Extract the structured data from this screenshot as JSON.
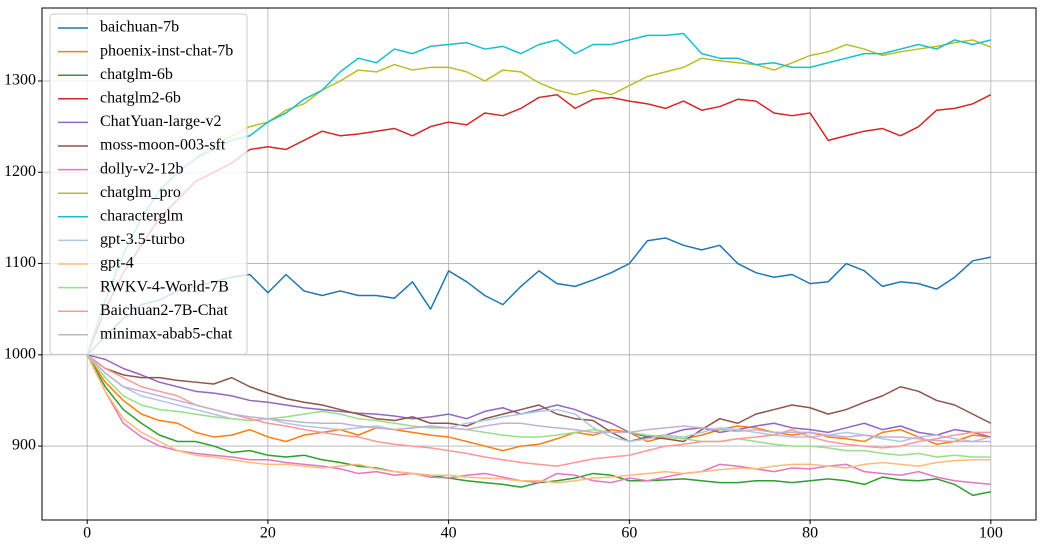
{
  "chart_data": {
    "type": "line",
    "x": [
      0,
      2,
      4,
      6,
      8,
      10,
      12,
      14,
      16,
      18,
      20,
      22,
      24,
      26,
      28,
      30,
      32,
      34,
      36,
      38,
      40,
      42,
      44,
      46,
      48,
      50,
      52,
      54,
      56,
      58,
      60,
      62,
      64,
      66,
      68,
      70,
      72,
      74,
      76,
      78,
      80,
      82,
      84,
      86,
      88,
      90,
      92,
      94,
      96,
      98,
      100
    ],
    "xlim": [
      -5,
      105
    ],
    "xticks": [
      0,
      20,
      40,
      60,
      80,
      100
    ],
    "ylim": [
      819,
      1380
    ],
    "yticks": [
      900,
      1000,
      1100,
      1200,
      1300
    ],
    "grid": true,
    "legend": "upper left",
    "series": [
      {
        "name": "baichuan-7b",
        "color": "#1f77b4",
        "values": [
          1000,
          1020,
          1040,
          1055,
          1060,
          1070,
          1075,
          1080,
          1085,
          1088,
          1068,
          1088,
          1070,
          1065,
          1070,
          1065,
          1065,
          1062,
          1080,
          1050,
          1092,
          1080,
          1065,
          1055,
          1075,
          1092,
          1078,
          1075,
          1082,
          1090,
          1100,
          1125,
          1128,
          1120,
          1115,
          1120,
          1100,
          1090,
          1085,
          1088,
          1078,
          1080,
          1100,
          1092,
          1075,
          1080,
          1078,
          1072,
          1085,
          1103,
          1107
        ]
      },
      {
        "name": "phoenix-inst-chat-7b",
        "color": "#ff7f0e",
        "values": [
          1000,
          970,
          950,
          935,
          928,
          925,
          915,
          910,
          912,
          918,
          910,
          905,
          912,
          915,
          918,
          912,
          920,
          918,
          915,
          912,
          910,
          905,
          900,
          895,
          900,
          902,
          908,
          915,
          912,
          918,
          915,
          905,
          910,
          908,
          912,
          918,
          922,
          920,
          915,
          912,
          915,
          910,
          908,
          905,
          915,
          918,
          910,
          902,
          905,
          912,
          910
        ]
      },
      {
        "name": "chatglm-6b",
        "color": "#2ca02c",
        "values": [
          1000,
          965,
          940,
          925,
          912,
          905,
          905,
          900,
          893,
          895,
          890,
          888,
          890,
          885,
          882,
          878,
          876,
          872,
          870,
          868,
          865,
          862,
          860,
          858,
          855,
          860,
          862,
          865,
          870,
          868,
          862,
          862,
          863,
          864,
          862,
          860,
          860,
          862,
          862,
          860,
          862,
          864,
          862,
          858,
          866,
          863,
          862,
          864,
          858,
          846,
          850
        ]
      },
      {
        "name": "chatglm2-6b",
        "color": "#d62728",
        "values": [
          1000,
          1050,
          1090,
          1120,
          1150,
          1170,
          1190,
          1200,
          1210,
          1225,
          1228,
          1225,
          1235,
          1245,
          1240,
          1242,
          1245,
          1248,
          1240,
          1250,
          1255,
          1252,
          1265,
          1262,
          1270,
          1282,
          1285,
          1270,
          1280,
          1282,
          1278,
          1275,
          1270,
          1278,
          1268,
          1272,
          1280,
          1278,
          1265,
          1262,
          1265,
          1235,
          1240,
          1245,
          1248,
          1240,
          1250,
          1268,
          1270,
          1275,
          1285
        ]
      },
      {
        "name": "ChatYuan-large-v2",
        "color": "#9467bd",
        "values": [
          1000,
          995,
          985,
          978,
          970,
          965,
          960,
          958,
          955,
          950,
          948,
          945,
          942,
          940,
          938,
          936,
          935,
          933,
          930,
          932,
          935,
          930,
          938,
          942,
          935,
          940,
          945,
          940,
          932,
          925,
          915,
          910,
          912,
          918,
          920,
          915,
          918,
          922,
          925,
          920,
          918,
          915,
          920,
          925,
          918,
          922,
          915,
          912,
          918,
          915,
          910
        ]
      },
      {
        "name": "moss-moon-003-sft",
        "color": "#8c564b",
        "values": [
          1000,
          985,
          978,
          975,
          975,
          972,
          970,
          968,
          975,
          965,
          958,
          952,
          948,
          945,
          940,
          935,
          930,
          928,
          932,
          925,
          925,
          922,
          930,
          935,
          940,
          945,
          935,
          930,
          928,
          915,
          905,
          910,
          908,
          905,
          918,
          930,
          925,
          935,
          940,
          945,
          942,
          935,
          940,
          948,
          955,
          965,
          960,
          950,
          945,
          935,
          925
        ]
      },
      {
        "name": "dolly-v2-12b",
        "color": "#e377c2",
        "values": [
          1000,
          960,
          925,
          910,
          900,
          895,
          892,
          890,
          888,
          885,
          885,
          882,
          880,
          878,
          875,
          870,
          872,
          868,
          870,
          866,
          865,
          868,
          870,
          866,
          862,
          860,
          870,
          868,
          862,
          860,
          865,
          862,
          866,
          870,
          872,
          880,
          878,
          875,
          872,
          876,
          875,
          878,
          880,
          872,
          870,
          868,
          872,
          866,
          862,
          860,
          858
        ]
      },
      {
        "name": "chatglm_pro",
        "color": "#bcbd22",
        "values": [
          1000,
          1060,
          1110,
          1150,
          1180,
          1200,
          1215,
          1230,
          1240,
          1250,
          1255,
          1268,
          1275,
          1290,
          1300,
          1312,
          1310,
          1318,
          1312,
          1315,
          1315,
          1310,
          1300,
          1312,
          1310,
          1298,
          1290,
          1285,
          1290,
          1285,
          1295,
          1305,
          1310,
          1315,
          1325,
          1322,
          1320,
          1318,
          1312,
          1320,
          1328,
          1332,
          1340,
          1335,
          1328,
          1332,
          1335,
          1338,
          1342,
          1345,
          1337
        ]
      },
      {
        "name": "characterglm",
        "color": "#17becf",
        "values": [
          1000,
          1060,
          1110,
          1150,
          1180,
          1200,
          1215,
          1225,
          1235,
          1240,
          1255,
          1265,
          1280,
          1290,
          1310,
          1325,
          1320,
          1335,
          1330,
          1338,
          1340,
          1342,
          1335,
          1338,
          1330,
          1340,
          1345,
          1330,
          1340,
          1340,
          1345,
          1350,
          1350,
          1352,
          1330,
          1325,
          1325,
          1318,
          1320,
          1315,
          1315,
          1320,
          1325,
          1330,
          1330,
          1335,
          1340,
          1335,
          1345,
          1340,
          1345
        ]
      },
      {
        "name": "gpt-3.5-turbo",
        "color": "#aec7e8",
        "values": [
          1000,
          980,
          965,
          955,
          950,
          945,
          940,
          935,
          930,
          928,
          930,
          925,
          922,
          920,
          918,
          920,
          922,
          918,
          920,
          922,
          920,
          925,
          928,
          932,
          935,
          938,
          940,
          935,
          920,
          910,
          905,
          908,
          912,
          910,
          915,
          920,
          918,
          915,
          912,
          910,
          910,
          912,
          915,
          912,
          908,
          905,
          910,
          912,
          908,
          905,
          910
        ]
      },
      {
        "name": "gpt-4",
        "color": "#ffbb78",
        "values": [
          1000,
          960,
          930,
          915,
          905,
          895,
          890,
          888,
          885,
          882,
          880,
          880,
          878,
          876,
          878,
          880,
          875,
          872,
          870,
          868,
          868,
          866,
          865,
          864,
          862,
          862,
          860,
          862,
          865,
          866,
          868,
          870,
          872,
          870,
          872,
          874,
          876,
          875,
          878,
          880,
          880,
          878,
          876,
          880,
          882,
          880,
          878,
          882,
          884,
          885,
          885
        ]
      },
      {
        "name": "RWKV-4-World-7B",
        "color": "#98df8a",
        "values": [
          1000,
          975,
          955,
          945,
          940,
          938,
          935,
          932,
          930,
          928,
          930,
          932,
          935,
          938,
          935,
          930,
          928,
          925,
          922,
          920,
          920,
          918,
          915,
          912,
          910,
          910,
          912,
          915,
          918,
          915,
          915,
          912,
          910,
          908,
          905,
          905,
          908,
          905,
          902,
          900,
          900,
          898,
          895,
          895,
          892,
          890,
          892,
          888,
          890,
          888,
          888
        ]
      },
      {
        "name": "Baichuan2-7B-Chat",
        "color": "#ff9896",
        "values": [
          1000,
          985,
          975,
          965,
          960,
          955,
          945,
          940,
          935,
          930,
          925,
          922,
          918,
          915,
          912,
          910,
          905,
          902,
          900,
          898,
          895,
          892,
          888,
          885,
          882,
          880,
          878,
          882,
          886,
          888,
          890,
          895,
          900,
          902,
          905,
          905,
          908,
          910,
          912,
          918,
          910,
          905,
          902,
          900,
          898,
          900,
          905,
          908,
          912,
          915,
          915
        ]
      },
      {
        "name": "minimax-abab5-chat",
        "color": "#c5b0d5",
        "values": [
          1000,
          980,
          965,
          960,
          955,
          950,
          945,
          940,
          935,
          932,
          930,
          928,
          926,
          925,
          925,
          922,
          920,
          918,
          920,
          922,
          920,
          918,
          922,
          925,
          925,
          922,
          920,
          918,
          915,
          915,
          915,
          918,
          920,
          922,
          920,
          918,
          916,
          918,
          915,
          915,
          915,
          912,
          910,
          912,
          910,
          910,
          908,
          906,
          905,
          905,
          905
        ]
      }
    ]
  }
}
